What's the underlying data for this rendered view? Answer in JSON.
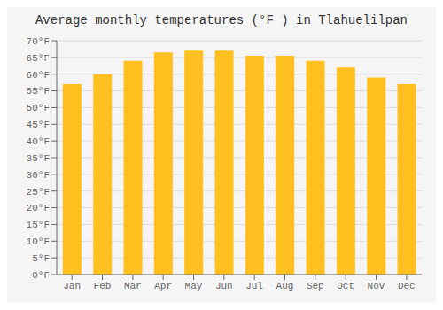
{
  "chart_data": {
    "type": "bar",
    "title": "Average monthly temperatures (°F ) in Tlahuelilpan",
    "categories": [
      "Jan",
      "Feb",
      "Mar",
      "Apr",
      "May",
      "Jun",
      "Jul",
      "Aug",
      "Sep",
      "Oct",
      "Nov",
      "Dec"
    ],
    "values": [
      57.0,
      60.0,
      64.0,
      66.5,
      67.0,
      67.0,
      65.5,
      65.5,
      64.0,
      62.0,
      59.0,
      57.0
    ],
    "color": "#FFC020",
    "ylim": [
      0,
      70
    ],
    "yticks": [
      {
        "value": 0,
        "label": "0°F"
      },
      {
        "value": 5,
        "label": "5°F"
      },
      {
        "value": 10,
        "label": "10°F"
      },
      {
        "value": 15,
        "label": "15°F"
      },
      {
        "value": 20,
        "label": "20°F"
      },
      {
        "value": 25,
        "label": "25°F"
      },
      {
        "value": 30,
        "label": "30°F"
      },
      {
        "value": 35,
        "label": "35°F"
      },
      {
        "value": 40,
        "label": "40°F"
      },
      {
        "value": 45,
        "label": "45°F"
      },
      {
        "value": 50,
        "label": "50°F"
      },
      {
        "value": 55,
        "label": "55°F"
      },
      {
        "value": 60,
        "label": "60°F"
      },
      {
        "value": 65,
        "label": "65°F"
      },
      {
        "value": 70,
        "label": "70°F"
      }
    ],
    "grid": true
  }
}
